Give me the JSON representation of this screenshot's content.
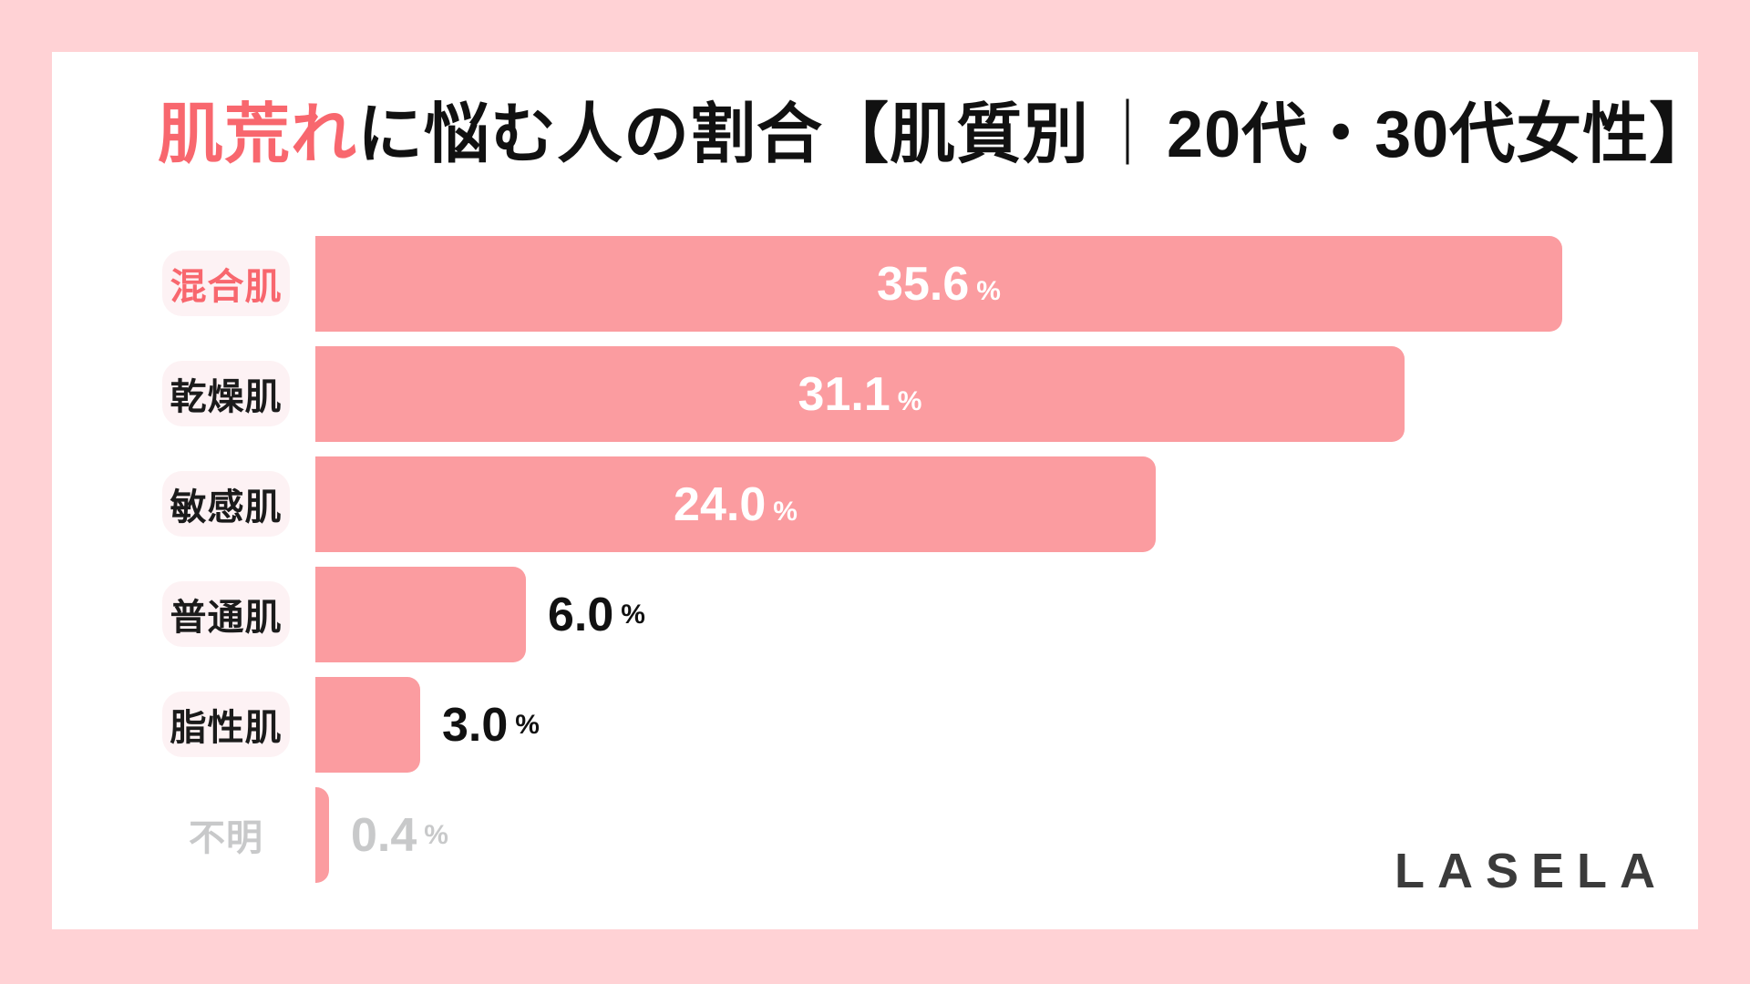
{
  "frame": {
    "background_color": "#FFD2D5",
    "card_color": "#FFFFFF"
  },
  "title": {
    "highlight": "肌荒れ",
    "middle": "に悩む人の割合【肌質別",
    "pipe": "｜",
    "tail": "20代・30代女性】",
    "highlight_color": "#F8676E",
    "text_color": "#111111"
  },
  "logo": {
    "text": "LASELA",
    "color": "#3B3B3B"
  },
  "chart_data": {
    "type": "bar",
    "orientation": "horizontal",
    "title": "肌荒れに悩む人の割合【肌質別｜20代・30代女性】",
    "categories": [
      "混合肌",
      "乾燥肌",
      "敏感肌",
      "普通肌",
      "脂性肌",
      "不明"
    ],
    "values": [
      35.6,
      31.1,
      24.0,
      6.0,
      3.0,
      0.4
    ],
    "unit": "%",
    "xlim": [
      0,
      36
    ],
    "grid": false,
    "legend": "none",
    "bar_color": "#FB9CA0",
    "rows": [
      {
        "label": "混合肌",
        "value_label": "35.6",
        "unit": "%",
        "value": 35.6,
        "label_color": "#F8676E",
        "pill": true,
        "value_placement": "inside",
        "value_color": "#FFFFFF"
      },
      {
        "label": "乾燥肌",
        "value_label": "31.1",
        "unit": "%",
        "value": 31.1,
        "label_color": "#1B1B1B",
        "pill": true,
        "value_placement": "inside",
        "value_color": "#FFFFFF"
      },
      {
        "label": "敏感肌",
        "value_label": "24.0",
        "unit": "%",
        "value": 24.0,
        "label_color": "#1B1B1B",
        "pill": true,
        "value_placement": "inside",
        "value_color": "#FFFFFF"
      },
      {
        "label": "普通肌",
        "value_label": "6.0",
        "unit": "%",
        "value": 6.0,
        "label_color": "#1B1B1B",
        "pill": true,
        "value_placement": "outside",
        "value_color": "#111111"
      },
      {
        "label": "脂性肌",
        "value_label": "3.0",
        "unit": "%",
        "value": 3.0,
        "label_color": "#1B1B1B",
        "pill": true,
        "value_placement": "outside",
        "value_color": "#111111"
      },
      {
        "label": "不明",
        "value_label": "0.4",
        "unit": "%",
        "value": 0.4,
        "label_color": "#C8C9CA",
        "pill": false,
        "value_placement": "outside",
        "value_color": "#C8C9CA"
      }
    ]
  }
}
